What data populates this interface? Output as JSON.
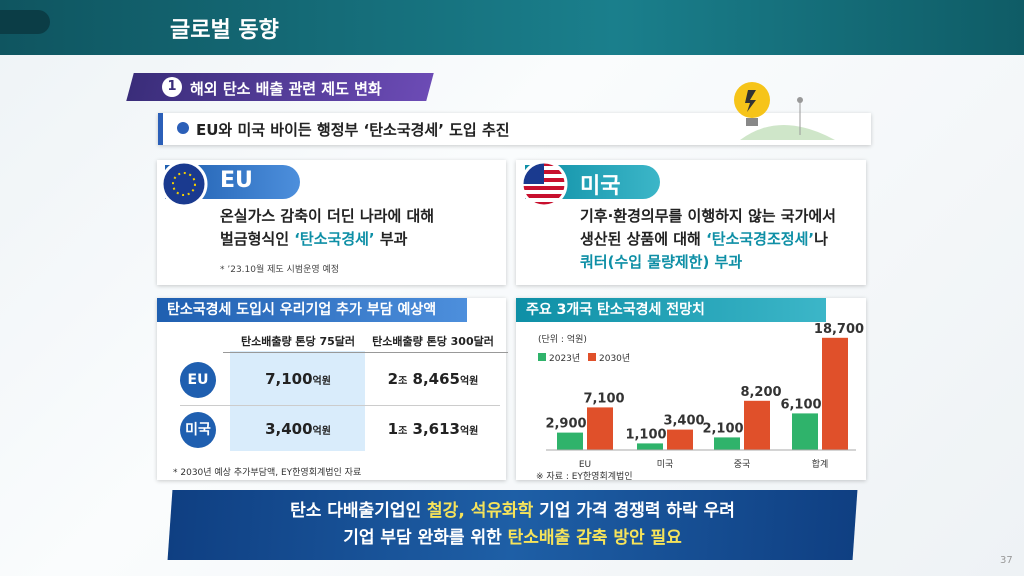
{
  "header": {
    "title": "글로벌 동향",
    "page_number": "37"
  },
  "section": {
    "number": "1",
    "title": "해외 탄소 배출 관련 제도 변화"
  },
  "subtitle": "EU와 미국 바이든 행정부 ‘탄소국경세’ 도입 추진",
  "highlight_color": "#0e8fa6",
  "cards": [
    {
      "title": "EU",
      "lines": [
        [
          {
            "text": "온실가스 감축이 더딘 나라에 대해"
          }
        ],
        [
          {
            "text": "벌금형식인 "
          },
          {
            "text": "‘탄소국경세’",
            "highlight": true
          },
          {
            "text": " 부과"
          }
        ]
      ],
      "note": "* ’23.10월 제도 시범운영 예정"
    },
    {
      "title": "미국",
      "lines": [
        [
          {
            "text": "기후·환경의무를 이행하지 않는 국가에서"
          }
        ],
        [
          {
            "text": "생산된 상품에 대해 "
          },
          {
            "text": "‘탄소국경조정세’",
            "highlight": true
          },
          {
            "text": "나"
          }
        ],
        [
          {
            "text": "쿼터(수입 물량제한) 부과",
            "highlight": true
          }
        ]
      ]
    }
  ],
  "table": {
    "title": "탄소국경세 도입시 우리기업 추가 부담 예상액",
    "columns": [
      "탄소배출량 톤당 75달러",
      "탄소배출량 톤당 300달러"
    ],
    "rows": [
      {
        "label": "EU",
        "cells": [
          "7,100억원",
          "2조 8,465억원"
        ]
      },
      {
        "label": "미국",
        "cells": [
          "3,400억원",
          "1조 3,613억원"
        ]
      }
    ],
    "note": "* 2030년 예상 추가부담액, EY한영회계법인 자료"
  },
  "chart_data": {
    "type": "bar",
    "title": "주요 3개국 탄소국경세 전망치",
    "unit": "(단위 : 억원)",
    "categories": [
      "EU",
      "미국",
      "중국",
      "합계"
    ],
    "series": [
      {
        "name": "2023년",
        "color": "#2fb36b",
        "values": [
          2900,
          1100,
          2100,
          6100
        ],
        "value_labels": [
          "2,900",
          "1,100",
          "2,100",
          "6,100"
        ]
      },
      {
        "name": "2030년",
        "color": "#e0502a",
        "values": [
          7100,
          3400,
          8200,
          18700
        ],
        "value_labels": [
          "7,100",
          "3,400",
          "8,200",
          "18,700"
        ]
      }
    ],
    "ylim": [
      0,
      20000
    ],
    "source": "※ 자료 : EY한영회계법인"
  },
  "banner": {
    "highlight_color": "#f6e35a",
    "lines": [
      [
        {
          "text": "탄소 다배출기업인 "
        },
        {
          "text": "철강, 석유화학",
          "highlight": true
        },
        {
          "text": " 기업 가격 경쟁력 하락 우려"
        }
      ],
      [
        {
          "text": "기업 부담 완화를 위한 "
        },
        {
          "text": "탄소배출 감축 방안 필요",
          "highlight": true
        }
      ]
    ]
  }
}
